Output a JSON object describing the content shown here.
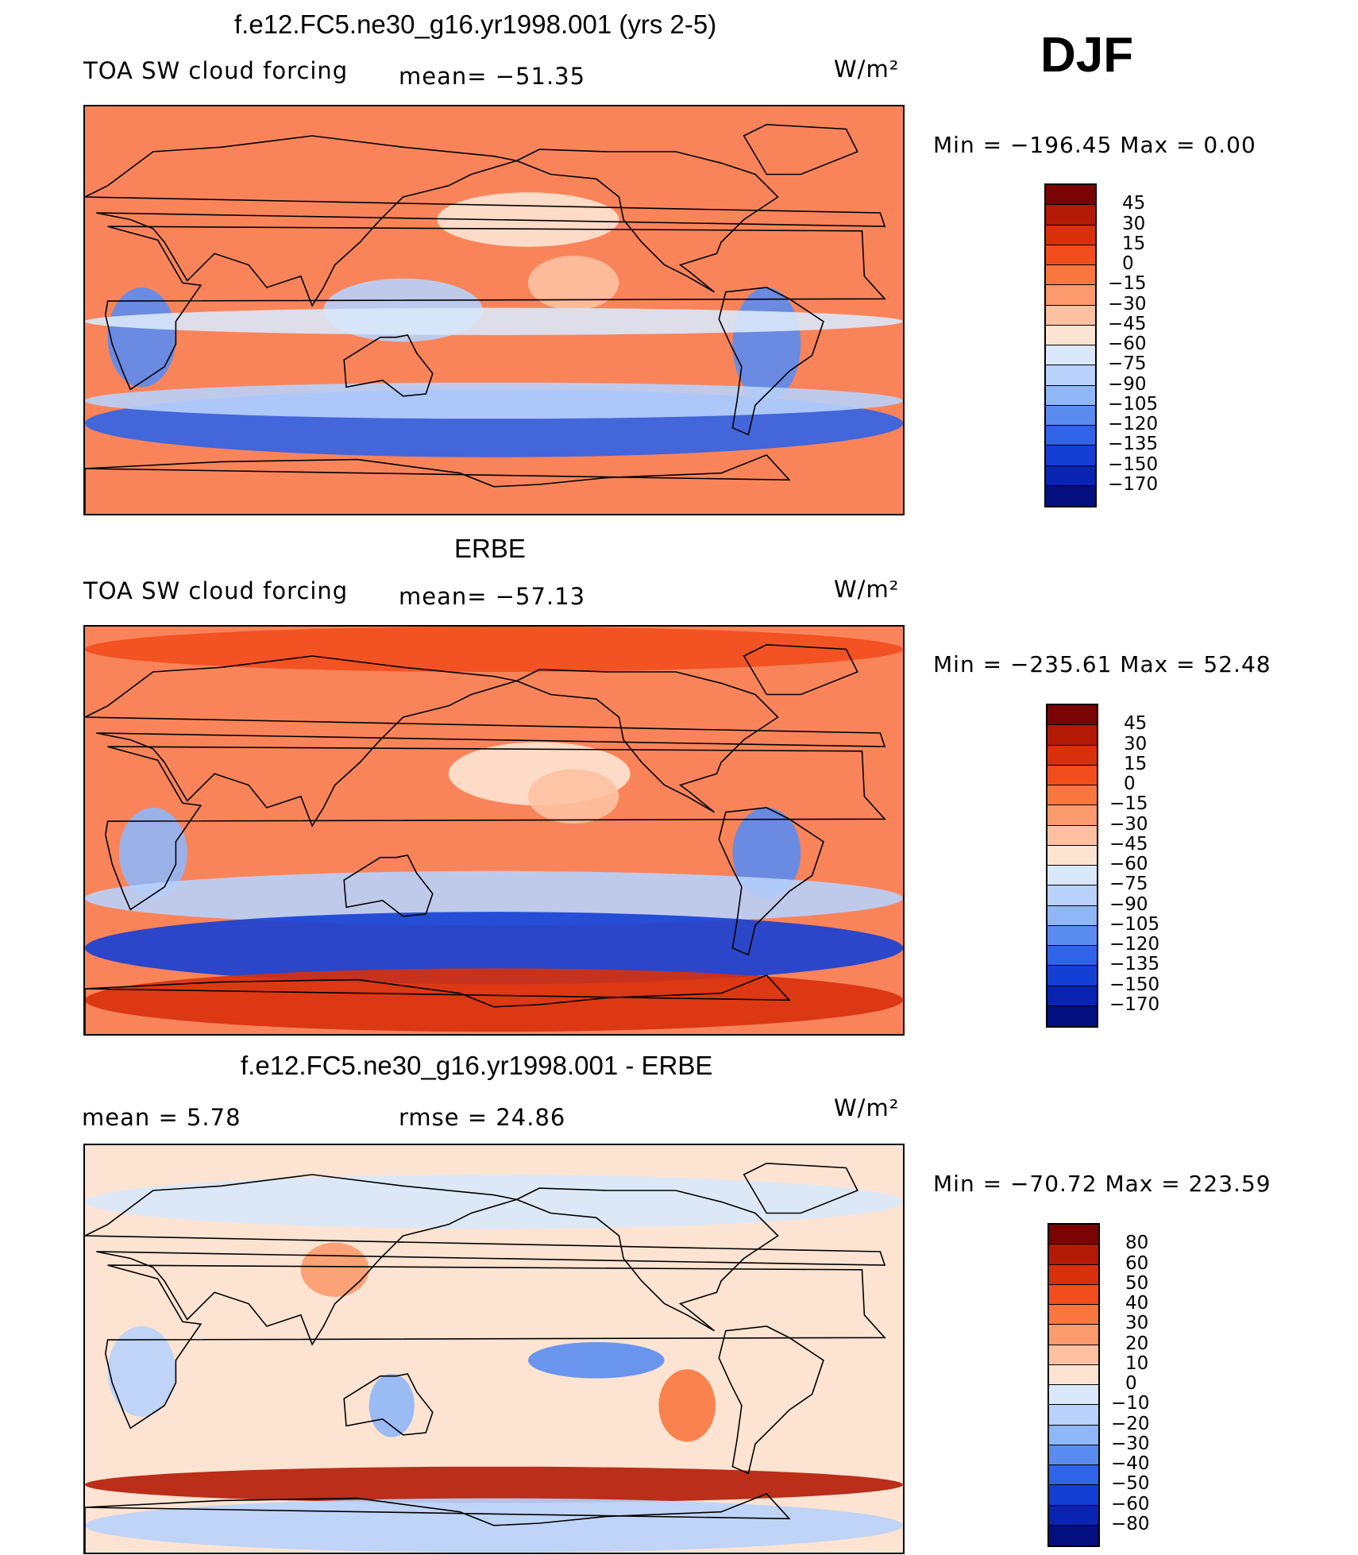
{
  "season": "DJF",
  "units": "W/m²",
  "chart_data": [
    {
      "type": "heatmap",
      "title": "f.e12.FC5.ne30_g16.yr1998.001 (yrs 2-5)",
      "variable_label": "TOA SW cloud forcing",
      "stat_left": "",
      "stat_mid": "mean=  −51.35",
      "units": "W/m²",
      "min_max": "Min  =  −196.45  Max  =     0.00",
      "min": -196.45,
      "max": 0.0,
      "mean": -51.35,
      "colorbar_levels": [
        "45",
        "30",
        "15",
        "0",
        "−15",
        "−30",
        "−45",
        "−60",
        "−75",
        "−90",
        "−105",
        "−120",
        "−135",
        "−150",
        "−170"
      ],
      "colorbar_colors": [
        "#7a0403",
        "#b21a05",
        "#d8300b",
        "#f24d1c",
        "#f9773f",
        "#fb9a6c",
        "#fdc1a1",
        "#fde4d2",
        "#d9e8fa",
        "#b8d2fb",
        "#8fb6f7",
        "#5a8cf0",
        "#2f63e8",
        "#143fd4",
        "#0824b0",
        "#040f80"
      ],
      "background": "#f9845a",
      "regions": [
        {
          "lat": 12,
          "lon": 215,
          "w": 40,
          "h": 12,
          "level": 6
        },
        {
          "lat": 40,
          "lon": 195,
          "w": 80,
          "h": 12,
          "level": 7
        },
        {
          "lat": 0,
          "lon": 140,
          "w": 70,
          "h": 14,
          "level": 9
        },
        {
          "lat": -15,
          "lon": 300,
          "w": 30,
          "h": 25,
          "level": 11
        },
        {
          "lat": -12,
          "lon": 25,
          "w": 30,
          "h": 22,
          "level": 11
        },
        {
          "lat": -50,
          "lon": 180,
          "w": 360,
          "h": 15,
          "level": 12
        },
        {
          "lat": -40,
          "lon": 180,
          "w": 360,
          "h": 8,
          "level": 9
        },
        {
          "lat": -5,
          "lon": 180,
          "w": 360,
          "h": 6,
          "level": 8
        }
      ]
    },
    {
      "type": "heatmap",
      "title": "ERBE",
      "variable_label": "TOA SW cloud forcing",
      "stat_left": "",
      "stat_mid": "mean=  −57.13",
      "units": "W/m²",
      "min_max": "Min  =  −235.61  Max  =    52.48",
      "min": -235.61,
      "max": 52.48,
      "mean": -57.13,
      "colorbar_levels": [
        "45",
        "30",
        "15",
        "0",
        "−15",
        "−30",
        "−45",
        "−60",
        "−75",
        "−90",
        "−105",
        "−120",
        "−135",
        "−150",
        "−170"
      ],
      "colorbar_colors": [
        "#7a0403",
        "#b21a05",
        "#d8300b",
        "#f24d1c",
        "#f9773f",
        "#fb9a6c",
        "#fdc1a1",
        "#fde4d2",
        "#d9e8fa",
        "#b8d2fb",
        "#8fb6f7",
        "#5a8cf0",
        "#2f63e8",
        "#143fd4",
        "#0824b0",
        "#040f80"
      ],
      "background": "#f9845a",
      "regions": [
        {
          "lat": 80,
          "lon": 180,
          "w": 360,
          "h": 10,
          "level": 3
        },
        {
          "lat": 25,
          "lon": 200,
          "w": 80,
          "h": 14,
          "level": 7
        },
        {
          "lat": 15,
          "lon": 215,
          "w": 40,
          "h": 12,
          "level": 6
        },
        {
          "lat": -10,
          "lon": 300,
          "w": 30,
          "h": 20,
          "level": 11
        },
        {
          "lat": -10,
          "lon": 30,
          "w": 30,
          "h": 20,
          "level": 10
        },
        {
          "lat": -30,
          "lon": 180,
          "w": 360,
          "h": 12,
          "level": 9
        },
        {
          "lat": -52,
          "lon": 180,
          "w": 360,
          "h": 16,
          "level": 13
        },
        {
          "lat": -75,
          "lon": 180,
          "w": 360,
          "h": 14,
          "level": 2
        }
      ]
    },
    {
      "type": "heatmap",
      "title": "f.e12.FC5.ne30_g16.yr1998.001 - ERBE",
      "variable_label": "",
      "stat_left": "mean  =     5.78",
      "stat_mid": "rmse  =    24.86",
      "units": "W/m²",
      "min_max": "Min  =  −70.72  Max  =  223.59",
      "min": -70.72,
      "max": 223.59,
      "mean": 5.78,
      "rmse": 24.86,
      "colorbar_levels": [
        "80",
        "60",
        "50",
        "40",
        "30",
        "20",
        "10",
        "0",
        "−10",
        "−20",
        "−30",
        "−40",
        "−50",
        "−60",
        "−80"
      ],
      "colorbar_colors": [
        "#7a0403",
        "#b21a05",
        "#d8300b",
        "#f24d1c",
        "#f9773f",
        "#fb9a6c",
        "#fdc1a1",
        "#fde4d2",
        "#d9e8fa",
        "#b8d2fb",
        "#8fb6f7",
        "#5a8cf0",
        "#2f63e8",
        "#143fd4",
        "#0824b0",
        "#040f80"
      ],
      "background": "#fde4d2",
      "regions": [
        {
          "lat": 65,
          "lon": 180,
          "w": 360,
          "h": 12,
          "level": 8
        },
        {
          "lat": 35,
          "lon": 110,
          "w": 30,
          "h": 12,
          "level": 5
        },
        {
          "lat": -5,
          "lon": 225,
          "w": 60,
          "h": 8,
          "level": 11
        },
        {
          "lat": -25,
          "lon": 265,
          "w": 25,
          "h": 16,
          "level": 4
        },
        {
          "lat": -25,
          "lon": 135,
          "w": 20,
          "h": 14,
          "level": 10
        },
        {
          "lat": -10,
          "lon": 25,
          "w": 30,
          "h": 20,
          "level": 9
        },
        {
          "lat": -60,
          "lon": 180,
          "w": 360,
          "h": 8,
          "level": 1
        },
        {
          "lat": -78,
          "lon": 180,
          "w": 360,
          "h": 12,
          "level": 9
        }
      ]
    }
  ]
}
